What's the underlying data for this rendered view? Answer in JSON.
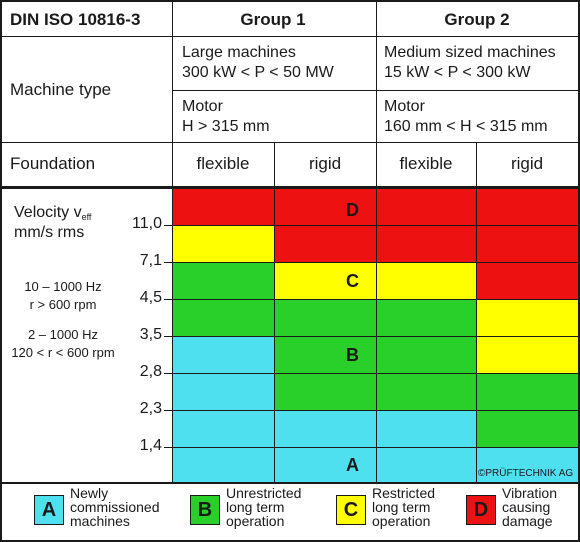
{
  "header": {
    "standard": "DIN ISO 10816-3",
    "group1": "Group 1",
    "group2": "Group 2"
  },
  "machine_type": {
    "label": "Machine type",
    "group1_size_l1": "Large machines",
    "group1_size_l2": "300 kW < P < 50 MW",
    "group2_size_l1": "Medium sized machines",
    "group2_size_l2": "15 kW < P < 300 kW",
    "group1_motor_l1": "Motor",
    "group1_motor_l2": "H > 315 mm",
    "group2_motor_l1": "Motor",
    "group2_motor_l2": "160 mm < H < 315 mm"
  },
  "foundation": {
    "label": "Foundation",
    "columns": [
      "flexible",
      "rigid",
      "flexible",
      "rigid"
    ]
  },
  "velocity": {
    "label_main": "Velocity v",
    "label_sub": "eff",
    "unit": "mm/s rms",
    "range1_l1": "10 – 1000 Hz",
    "range1_l2": "r > 600 rpm",
    "range2_l1": "2 – 1000 Hz",
    "range2_l2": "120 < r < 600 rpm",
    "ticks": [
      "11,0",
      "7,1",
      "4,5",
      "3,5",
      "2,8",
      "2,3",
      "1,4"
    ]
  },
  "zones": {
    "colors": {
      "A": "#4fe0f0",
      "B": "#2ad02a",
      "C": "#ffff00",
      "D": "#ee1111"
    },
    "grid_rows": [
      [
        "D",
        "D",
        "D",
        "D"
      ],
      [
        "C",
        "D",
        "D",
        "D"
      ],
      [
        "B",
        "C",
        "C",
        "D"
      ],
      [
        "B",
        "B",
        "B",
        "C"
      ],
      [
        "A",
        "B",
        "B",
        "C"
      ],
      [
        "A",
        "B",
        "B",
        "B"
      ],
      [
        "A",
        "A",
        "A",
        "B"
      ],
      [
        "A",
        "A",
        "A",
        "A"
      ]
    ],
    "labels": {
      "A": "A",
      "B": "B",
      "C": "C",
      "D": "D"
    }
  },
  "copyright": "©PRÜFTECHNIK AG",
  "legend": [
    {
      "zone": "A",
      "color": "#4fe0f0",
      "l1": "Newly",
      "l2": "commissioned",
      "l3": "machines"
    },
    {
      "zone": "B",
      "color": "#2ad02a",
      "l1": "Unrestricted",
      "l2": "long term",
      "l3": "operation"
    },
    {
      "zone": "C",
      "color": "#ffff00",
      "l1": "Restricted",
      "l2": "long term",
      "l3": "operation"
    },
    {
      "zone": "D",
      "color": "#ee1111",
      "l1": "Vibration",
      "l2": "causing",
      "l3": "damage"
    }
  ]
}
